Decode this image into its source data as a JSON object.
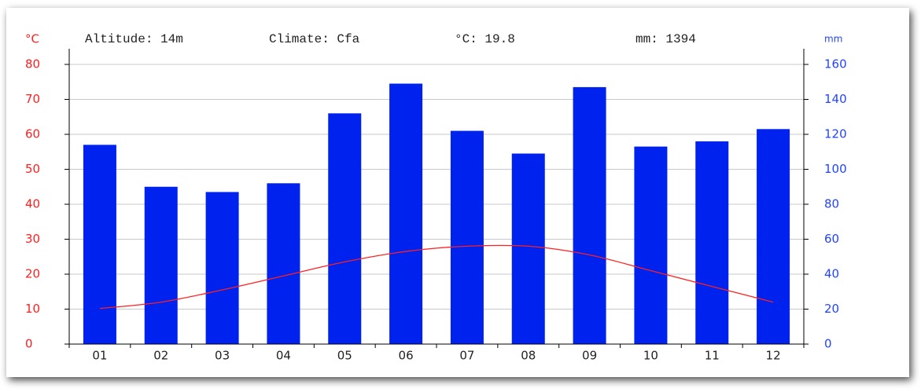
{
  "chart_data": {
    "type": "bar",
    "annotations": [
      "Altitude: 14m",
      "Climate: Cfa",
      "°C: 19.8",
      "mm: 1394"
    ],
    "y_label": "°C",
    "y2_label": "mm",
    "categories": [
      "01",
      "02",
      "03",
      "04",
      "05",
      "06",
      "07",
      "08",
      "09",
      "10",
      "11",
      "12"
    ],
    "series": [
      {
        "name": "mm",
        "type": "bar",
        "axis": "y2",
        "color": "#0022ee",
        "values": [
          114,
          90,
          87,
          92,
          132,
          149,
          122,
          109,
          147,
          113,
          116,
          123
        ]
      },
      {
        "name": "°C",
        "type": "line",
        "color": "#ff2020",
        "values": [
          10.2,
          12,
          15.5,
          19.5,
          23.5,
          26.5,
          28,
          28,
          25.5,
          21,
          16.5,
          12
        ]
      }
    ],
    "ylim": [
      0,
      80
    ],
    "yticks": [
      0,
      10,
      20,
      30,
      40,
      50,
      60,
      70,
      80
    ],
    "y2lim": [
      0,
      160
    ],
    "y2ticks": [
      0,
      20,
      40,
      60,
      80,
      100,
      120,
      140,
      160
    ],
    "y_color": "#ff2020",
    "y2_color": "#2244ff",
    "grid": true
  }
}
